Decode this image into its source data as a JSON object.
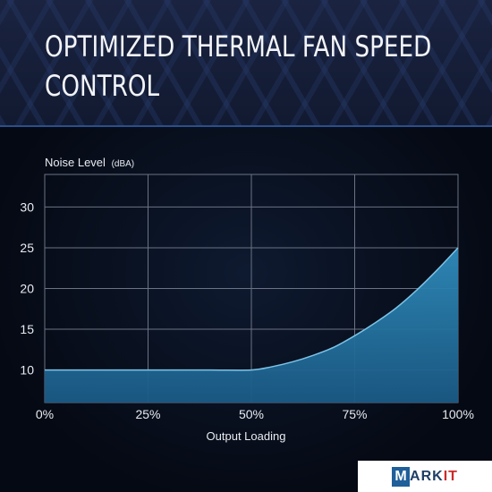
{
  "header": {
    "title_line1": "OPTIMIZED THERMAL FAN SPEED",
    "title_line2": "CONTROL"
  },
  "chart_data": {
    "type": "area",
    "title": "OPTIMIZED THERMAL FAN SPEED CONTROL",
    "xlabel": "Output Loading",
    "ylabel": "Noise Level",
    "ylabel_unit": "(dBA)",
    "x_unit": "%",
    "x": [
      0,
      10,
      20,
      30,
      40,
      50,
      55,
      60,
      65,
      70,
      75,
      80,
      85,
      90,
      95,
      100
    ],
    "y": [
      10,
      10,
      10,
      10,
      10,
      10,
      10.4,
      11,
      11.8,
      12.8,
      14.2,
      15.8,
      17.6,
      19.8,
      22.3,
      25
    ],
    "xticks": [
      0,
      25,
      50,
      75,
      100
    ],
    "xtick_labels": [
      "0%",
      "25%",
      "50%",
      "75%",
      "100%"
    ],
    "yticks": [
      10,
      15,
      20,
      25,
      30
    ],
    "ytick_labels": [
      "10",
      "15",
      "20",
      "25",
      "30"
    ],
    "xlim": [
      0,
      100
    ],
    "ylim": [
      6,
      34
    ],
    "grid": true,
    "colors": {
      "fill": "#2a7fae",
      "line": "#7cc3e6",
      "grid": "#6b7384",
      "text": "#e8ecf2"
    }
  },
  "logo": {
    "box": "M",
    "rest": "ARK",
    "accent": "IT"
  }
}
